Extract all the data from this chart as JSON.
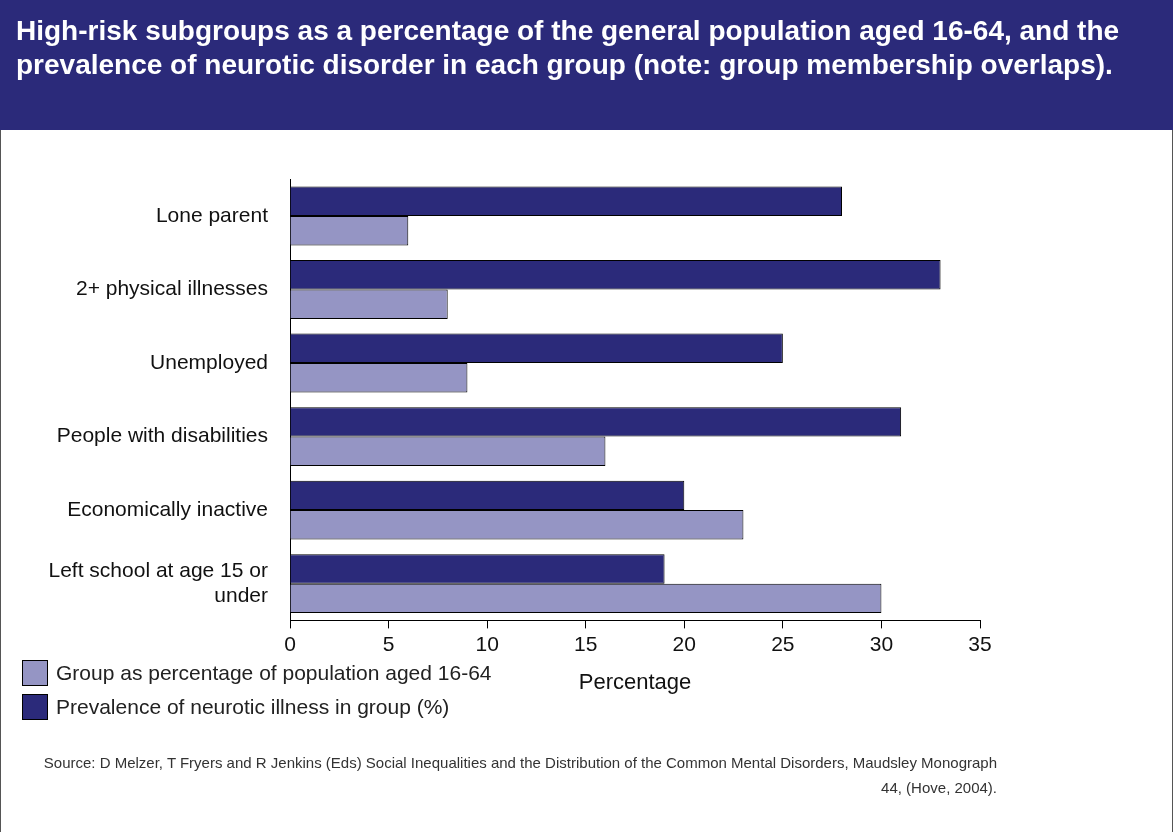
{
  "chart_data": {
    "type": "bar",
    "orientation": "horizontal",
    "title": "High-risk subgroups as a percentage of the general population aged 16-64, and the prevalence of neurotic disorder in each group (note: group membership overlaps).",
    "xlabel": "Percentage",
    "categories": [
      "Lone parent",
      "2+ physical illnesses",
      "Unemployed",
      "People with disabilities",
      "Economically inactive",
      "Left school at age 15 or under"
    ],
    "series": [
      {
        "name": "Prevalence of neurotic illness in group (%)",
        "color": "#2b2a7a",
        "values": [
          28,
          33,
          25,
          31,
          20,
          19
        ]
      },
      {
        "name": "Group as percentage of population aged 16-64",
        "color": "#9595c4",
        "values": [
          6,
          8,
          9,
          16,
          23,
          30
        ]
      }
    ],
    "xlim": [
      0,
      35
    ],
    "xticks": [
      0,
      5,
      10,
      15,
      20,
      25,
      30,
      35
    ],
    "grid": false,
    "legend": "bottom left",
    "annotations": [
      "Source: D Melzer, T Fryers and R Jenkins (Eds) Social Inequalities and the Distribution of the Common Mental Disorders, Maudsley Monograph 44, (Hove, 2004)."
    ]
  }
}
